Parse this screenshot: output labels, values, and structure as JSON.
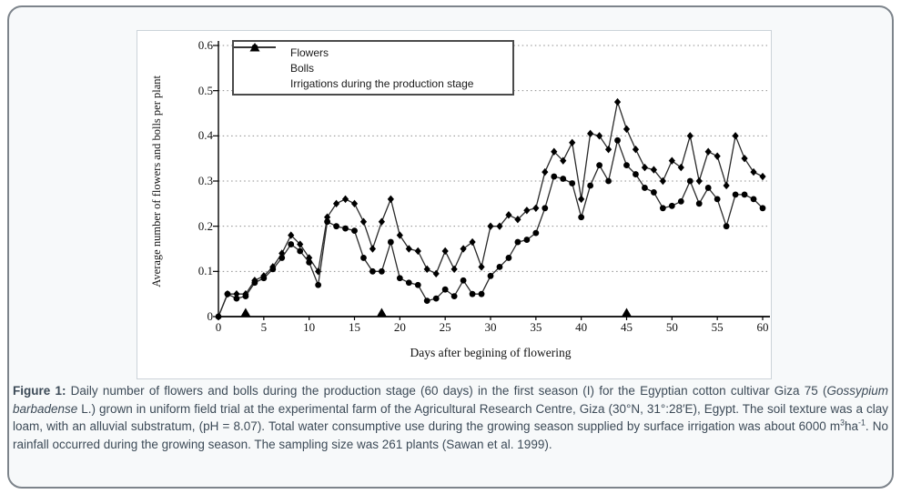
{
  "colors": {
    "series": "#000000",
    "line": "#2a2a2a",
    "grid": "#8d8d8d",
    "frame_border": "#7d848b",
    "panel_border": "#ccd3d9",
    "caption_text": "#3c4a57"
  },
  "chart_data": {
    "type": "line",
    "title": "",
    "xlabel": "Days after begining of flowering",
    "ylabel": "Average number of flowers and bolls per plant",
    "xlim": [
      0,
      60
    ],
    "ylim": [
      0,
      0.6
    ],
    "x_ticks": [
      0,
      5,
      10,
      15,
      20,
      25,
      30,
      35,
      40,
      45,
      50,
      55,
      60
    ],
    "y_ticks": [
      0,
      0.1,
      0.2,
      0.3,
      0.4,
      0.5,
      0.6
    ],
    "grid": "horizontal-dotted",
    "legend_position": "top-left-inside",
    "x": [
      0,
      1,
      2,
      3,
      4,
      5,
      6,
      7,
      8,
      9,
      10,
      11,
      12,
      13,
      14,
      15,
      16,
      17,
      18,
      19,
      20,
      21,
      22,
      23,
      24,
      25,
      26,
      27,
      28,
      29,
      30,
      31,
      32,
      33,
      34,
      35,
      36,
      37,
      38,
      39,
      40,
      41,
      42,
      43,
      44,
      45,
      46,
      47,
      48,
      49,
      50,
      51,
      52,
      53,
      54,
      55,
      56,
      57,
      58,
      59,
      60
    ],
    "series": [
      {
        "name": "Flowers",
        "marker": "diamond",
        "values": [
          0,
          0.05,
          0.05,
          0.05,
          0.08,
          0.09,
          0.11,
          0.14,
          0.18,
          0.16,
          0.13,
          0.1,
          0.22,
          0.25,
          0.26,
          0.25,
          0.21,
          0.15,
          0.21,
          0.26,
          0.18,
          0.15,
          0.145,
          0.105,
          0.095,
          0.145,
          0.105,
          0.15,
          0.165,
          0.11,
          0.2,
          0.2,
          0.225,
          0.215,
          0.235,
          0.24,
          0.32,
          0.365,
          0.345,
          0.385,
          0.26,
          0.405,
          0.4,
          0.37,
          0.475,
          0.415,
          0.37,
          0.33,
          0.325,
          0.3,
          0.345,
          0.33,
          0.4,
          0.3,
          0.365,
          0.355,
          0.29,
          0.4,
          0.35,
          0.32,
          0.31
        ]
      },
      {
        "name": "Bolls",
        "marker": "circle",
        "values": [
          0,
          0.05,
          0.04,
          0.045,
          0.075,
          0.085,
          0.105,
          0.13,
          0.16,
          0.145,
          0.12,
          0.07,
          0.21,
          0.2,
          0.195,
          0.19,
          0.13,
          0.1,
          0.1,
          0.165,
          0.085,
          0.075,
          0.07,
          0.035,
          0.04,
          0.06,
          0.045,
          0.08,
          0.05,
          0.05,
          0.09,
          0.11,
          0.13,
          0.165,
          0.17,
          0.185,
          0.24,
          0.31,
          0.305,
          0.295,
          0.22,
          0.29,
          0.335,
          0.3,
          0.39,
          0.335,
          0.315,
          0.285,
          0.275,
          0.24,
          0.245,
          0.255,
          0.3,
          0.25,
          0.285,
          0.26,
          0.2,
          0.27,
          0.27,
          0.26,
          0.24
        ]
      },
      {
        "name": "Irrigations during the production stage",
        "marker": "triangle",
        "x": [
          3,
          18,
          45
        ],
        "values": [
          0,
          0,
          0
        ]
      }
    ]
  },
  "caption": {
    "segments": [
      {
        "text": "Figure 1:",
        "bold": true
      },
      {
        "text": " Daily number of flowers and bolls during the production stage (60 days) in the first season (I) for the Egyptian cotton cultivar Giza 75 ("
      },
      {
        "text": "Gossypium barbadense",
        "italic": true
      },
      {
        "text": " L.) grown in uniform field trial at the experimental farm of the Agricultural Research Centre, Giza (30°N, 31°:28′E), Egypt. The soil texture was a clay loam, with an alluvial substratum, (pH = 8.07). Total water consumptive use during the growing season supplied by surface irrigation was about 6000 m"
      },
      {
        "text": "3",
        "sup": true
      },
      {
        "text": "ha"
      },
      {
        "text": "-1",
        "sup": true
      },
      {
        "text": ". No rainfall occurred during the growing season. The sampling size was 261 plants (Sawan et al. 1999)."
      }
    ]
  }
}
